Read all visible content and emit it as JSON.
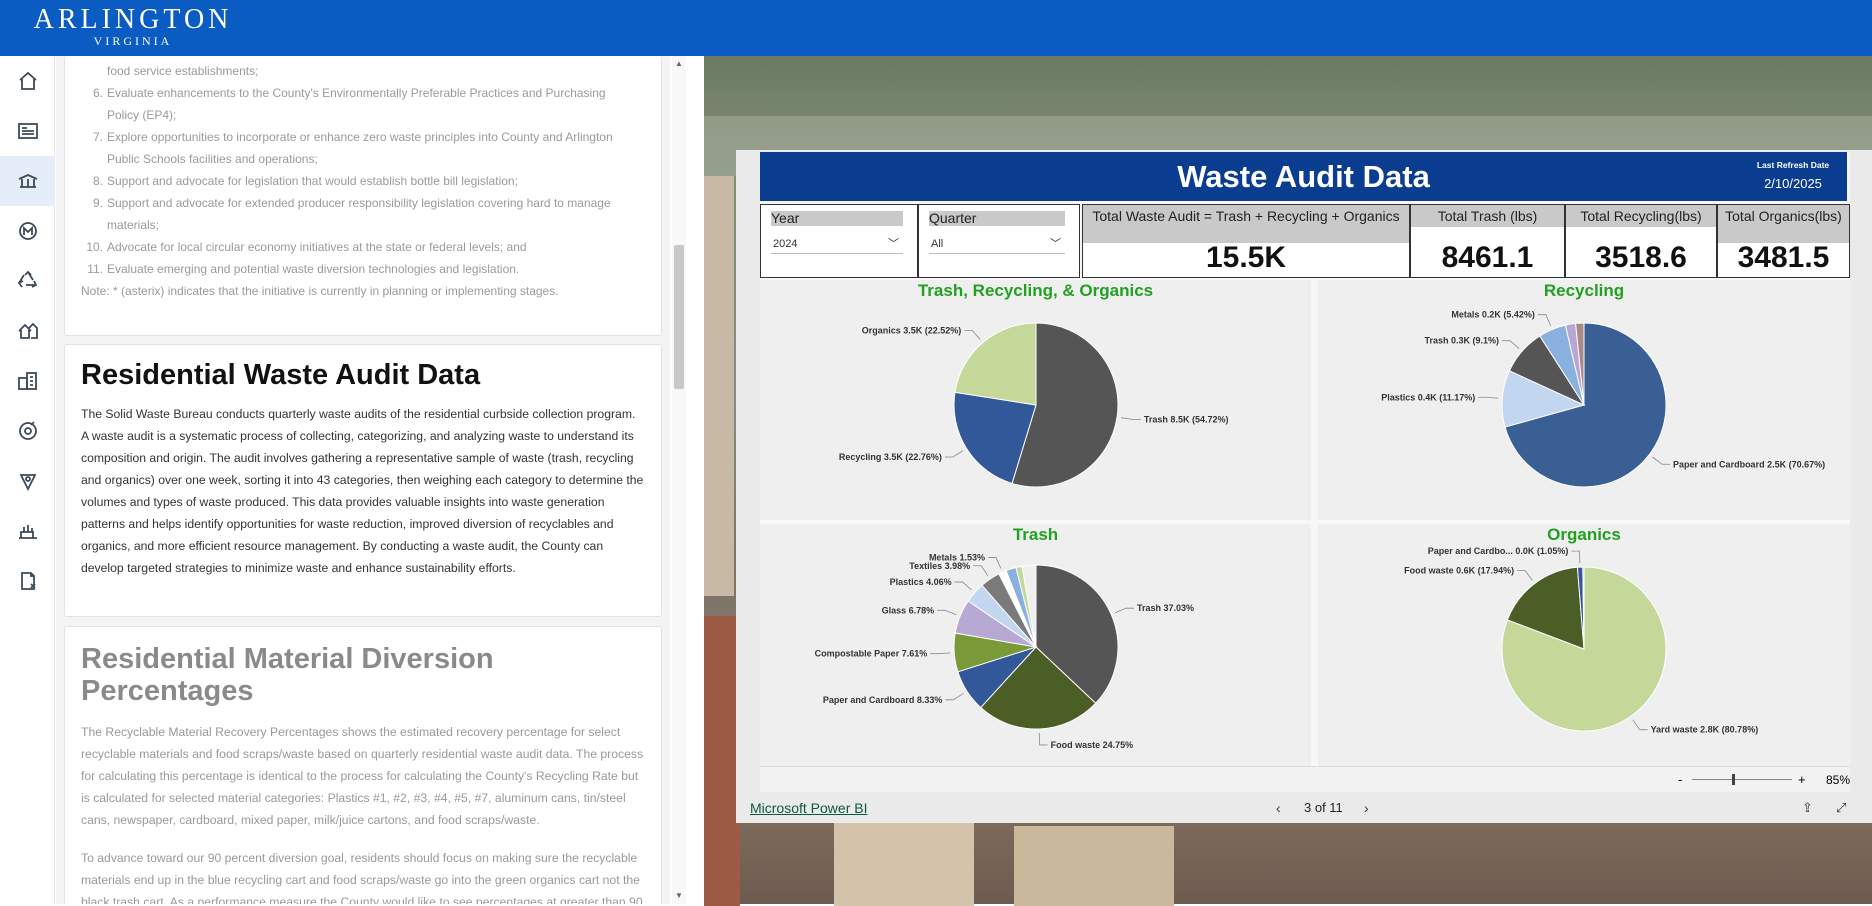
{
  "header": {
    "logo_line1": "ARLINGTON",
    "logo_line2": "VIRGINIA"
  },
  "nav": {
    "items": [
      {
        "name": "home-icon",
        "active": false
      },
      {
        "name": "news-icon",
        "active": false
      },
      {
        "name": "waste-truck-icon",
        "active": true
      },
      {
        "name": "metro-icon",
        "active": false
      },
      {
        "name": "recycle-icon",
        "active": false
      },
      {
        "name": "housing-icon",
        "active": false
      },
      {
        "name": "buildings-icon",
        "active": false
      },
      {
        "name": "parks-icon",
        "active": false
      },
      {
        "name": "map-pin-icon",
        "active": false
      },
      {
        "name": "food-service-icon",
        "active": false
      },
      {
        "name": "document-icon",
        "active": false
      }
    ]
  },
  "initiatives": {
    "items": [
      {
        "num": "",
        "text": "food service establishments;"
      },
      {
        "num": "6.",
        "text": "Evaluate enhancements to the County's Environmentally Preferable Practices and Purchasing"
      },
      {
        "num": "",
        "text": "Policy (EP4);"
      },
      {
        "num": "7.",
        "text": "Explore opportunities to incorporate or enhance zero waste principles into County and Arlington"
      },
      {
        "num": "",
        "text": "Public Schools facilities and operations;"
      },
      {
        "num": "8.",
        "text": "Support and advocate for legislation that would establish bottle bill legislation;"
      },
      {
        "num": "9.",
        "text": "Support and advocate for extended producer responsibility legislation covering hard to manage"
      },
      {
        "num": "",
        "text": "materials;"
      },
      {
        "num": "10.",
        "text": "Advocate for local circular economy initiatives at the state or federal levels; and"
      },
      {
        "num": "11.",
        "text": "Evaluate emerging and potential waste diversion technologies and legislation."
      }
    ],
    "note": "Note: * (asterix) indicates that the initiative is currently in planning or implementing stages."
  },
  "audit_section": {
    "title": "Residential Waste Audit Data",
    "body": "The Solid Waste Bureau conducts quarterly waste audits of the residential curbside collection program. A waste audit is a systematic process of collecting, categorizing, and analyzing waste to understand its composition and origin. The audit involves gathering a representative sample of waste (trash, recycling and organics) over one week, sorting it into 43 categories, then weighing each category to determine the volumes and types of waste produced. This data provides valuable insights into waste generation patterns and helps identify opportunities for waste reduction, improved diversion of recyclables and organics, and more efficient resource management. By conducting a waste audit, the County can develop targeted strategies to minimize waste and enhance sustainability efforts."
  },
  "diversion_section": {
    "title_line1": "Residential Material Diversion",
    "title_line2": "Percentages",
    "body1": "The Recyclable Material Recovery Percentages shows the estimated recovery percentage for select recyclable materials and food scraps/waste based on quarterly residential waste audit data. The process for calculating this percentage is identical to the process for calculating the County's Recycling Rate but is calculated for selected material categories: Plastics #1, #2, #3, #4, #5, #7, aluminum cans, tin/steel cans, newspaper, cardboard, mixed paper, milk/juice cartons, and food scraps/waste.",
    "body2": "To advance toward our 90 percent diversion goal, residents should focus on making sure the recyclable materials end up in the blue recycling cart and food scraps/waste go into the green organics cart not the black trash cart. As a performance measure the County would like to see percentages at greater than 90"
  },
  "report": {
    "title": "Waste Audit Data",
    "refresh_label": "Last Refresh Date",
    "refresh_date": "2/10/2025",
    "year_label": "Year",
    "year_value": "2024",
    "quarter_label": "Quarter",
    "quarter_value": "All",
    "kpis": [
      {
        "label": "Total Waste Audit = Trash + Recycling + Organics",
        "value": "15.5K"
      },
      {
        "label": "Total Trash (lbs)",
        "value": "8461.1"
      },
      {
        "label": "Total Recycling(lbs)",
        "value": "3518.6"
      },
      {
        "label": "Total Organics(lbs)",
        "value": "3481.5"
      }
    ],
    "zoom": "85%",
    "brand": "Microsoft Power BI",
    "page": "3 of 11",
    "zoom_minus": "-",
    "zoom_plus": "+"
  },
  "chart_data": [
    {
      "type": "pie",
      "title": "Trash, Recycling, & Organics",
      "slices": [
        {
          "label": "Trash 8.5K (54.72%)",
          "value": 54.72,
          "color": "#555555"
        },
        {
          "label": "Recycling 3.5K (22.76%)",
          "value": 22.76,
          "color": "#33589a"
        },
        {
          "label": "Organics 3.5K (22.52%)",
          "value": 22.52,
          "color": "#c4d89a"
        }
      ]
    },
    {
      "type": "pie",
      "title": "Recycling",
      "slices": [
        {
          "label": "Paper and Cardboard 2.5K (70.67%)",
          "value": 70.67,
          "color": "#3a5f95"
        },
        {
          "label": "Plastics 0.4K (11.17%)",
          "value": 11.17,
          "color": "#c2d6f0"
        },
        {
          "label": "Trash 0.3K (9.1%)",
          "value": 9.1,
          "color": "#555555"
        },
        {
          "label": "Metals 0.2K (5.42%)",
          "value": 5.42,
          "color": "#8ab0e0"
        },
        {
          "label": "",
          "value": 2.0,
          "color": "#b8a6d4"
        },
        {
          "label": "",
          "value": 1.64,
          "color": "#a88a8a"
        }
      ]
    },
    {
      "type": "pie",
      "title": "Trash",
      "slices": [
        {
          "label": "Trash 37.03%",
          "value": 37.03,
          "color": "#555555"
        },
        {
          "label": "Food waste 24.75%",
          "value": 24.75,
          "color": "#4a5e26"
        },
        {
          "label": "Paper and Cardboard 8.33%",
          "value": 8.33,
          "color": "#33589a"
        },
        {
          "label": "Compostable Paper 7.61%",
          "value": 7.61,
          "color": "#7a9a3a"
        },
        {
          "label": "Glass 6.78%",
          "value": 6.78,
          "color": "#b8a8d4"
        },
        {
          "label": "Plastics 4.06%",
          "value": 4.06,
          "color": "#c2d6f0"
        },
        {
          "label": "Textiles 3.98%",
          "value": 3.98,
          "color": "#7a7a7a"
        },
        {
          "label": "Metals 1.53%",
          "value": 1.53,
          "color": "#ffffff"
        },
        {
          "label": "",
          "value": 2.0,
          "color": "#8ab0e0"
        },
        {
          "label": "",
          "value": 1.2,
          "color": "#c4d89a"
        },
        {
          "label": "",
          "value": 2.73,
          "color": "#efefef"
        }
      ]
    },
    {
      "type": "pie",
      "title": "Organics",
      "slices": [
        {
          "label": "Yard waste 2.8K (80.78%)",
          "value": 80.78,
          "color": "#c4d89a"
        },
        {
          "label": "Food waste 0.6K (17.94%)",
          "value": 17.94,
          "color": "#4a5e26"
        },
        {
          "label": "Paper and Cardbo... 0.0K (1.05%)",
          "value": 1.05,
          "color": "#33589a"
        },
        {
          "label": "",
          "value": 0.23,
          "color": "#555555"
        }
      ]
    }
  ]
}
